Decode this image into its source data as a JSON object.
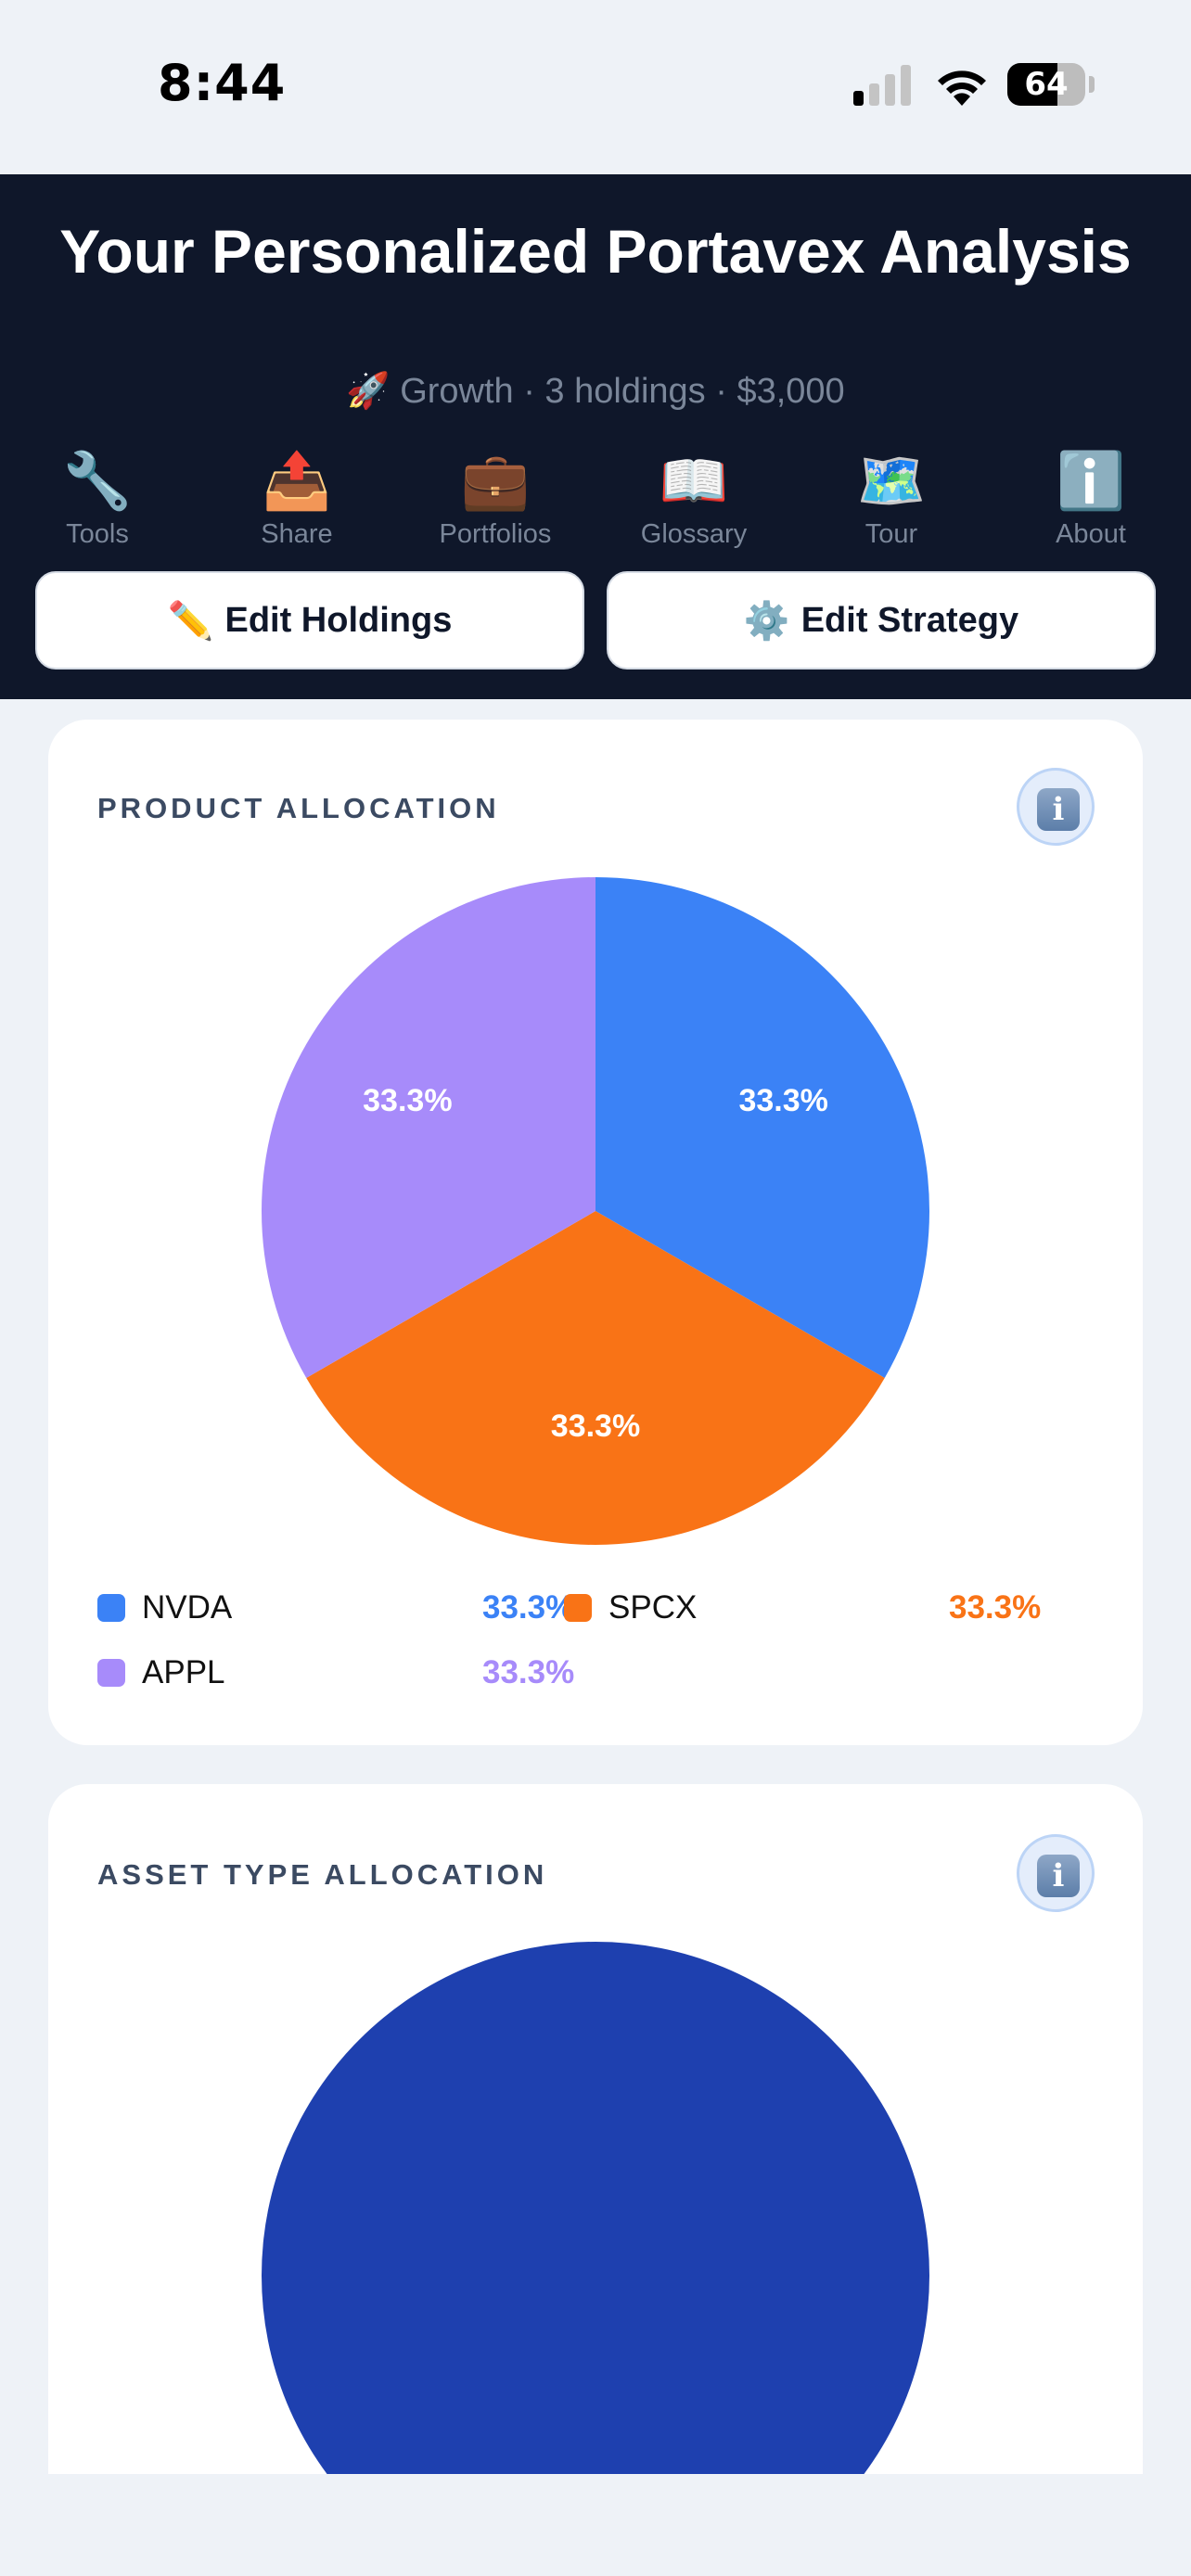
{
  "status_bar": {
    "time": "8:44",
    "battery": "64",
    "battery_level": 0.64
  },
  "header": {
    "title": "Your Personalized Portavex Analysis",
    "subtitle_icon": "🚀",
    "subtitle": "Growth · 3 holdings · $3,000",
    "nav": [
      {
        "icon": "🔧",
        "icon_name": "wrench-icon",
        "label": "Tools"
      },
      {
        "icon": "📤",
        "icon_name": "outbox-tray-icon",
        "label": "Share"
      },
      {
        "icon": "💼",
        "icon_name": "briefcase-icon",
        "label": "Portfolios"
      },
      {
        "icon": "📖",
        "icon_name": "open-book-icon",
        "label": "Glossary"
      },
      {
        "icon": "🗺️",
        "icon_name": "world-map-icon",
        "label": "Tour"
      },
      {
        "icon": "ℹ️",
        "icon_name": "info-icon",
        "label": "About"
      }
    ],
    "edit_holdings": {
      "icon": "✏️",
      "label": "Edit Holdings"
    },
    "edit_strategy": {
      "icon": "⚙️",
      "label": "Edit Strategy"
    }
  },
  "product_allocation": {
    "title": "PRODUCT ALLOCATION",
    "info_icon": "i"
  },
  "asset_type_allocation": {
    "title": "ASSET TYPE ALLOCATION",
    "info_icon": "i"
  },
  "colors": {
    "header_bg": "#0f172a",
    "nvda": "#3b82f6",
    "spcx": "#f97316",
    "appl": "#a78bfa",
    "asset_fill": "#1e40af"
  },
  "chart_data": [
    {
      "type": "pie",
      "title": "PRODUCT ALLOCATION",
      "categories": [
        "NVDA",
        "SPCX",
        "APPL"
      ],
      "values": [
        33.3,
        33.3,
        33.3
      ],
      "data_labels": [
        "33.3%",
        "33.3%",
        "33.3%"
      ],
      "colors": [
        "#3b82f6",
        "#f97316",
        "#a78bfa"
      ],
      "legend_placement": "bottom"
    },
    {
      "type": "pie",
      "title": "ASSET TYPE ALLOCATION",
      "categories": [
        ""
      ],
      "values": [
        100
      ],
      "colors": [
        "#1e40af"
      ]
    }
  ]
}
